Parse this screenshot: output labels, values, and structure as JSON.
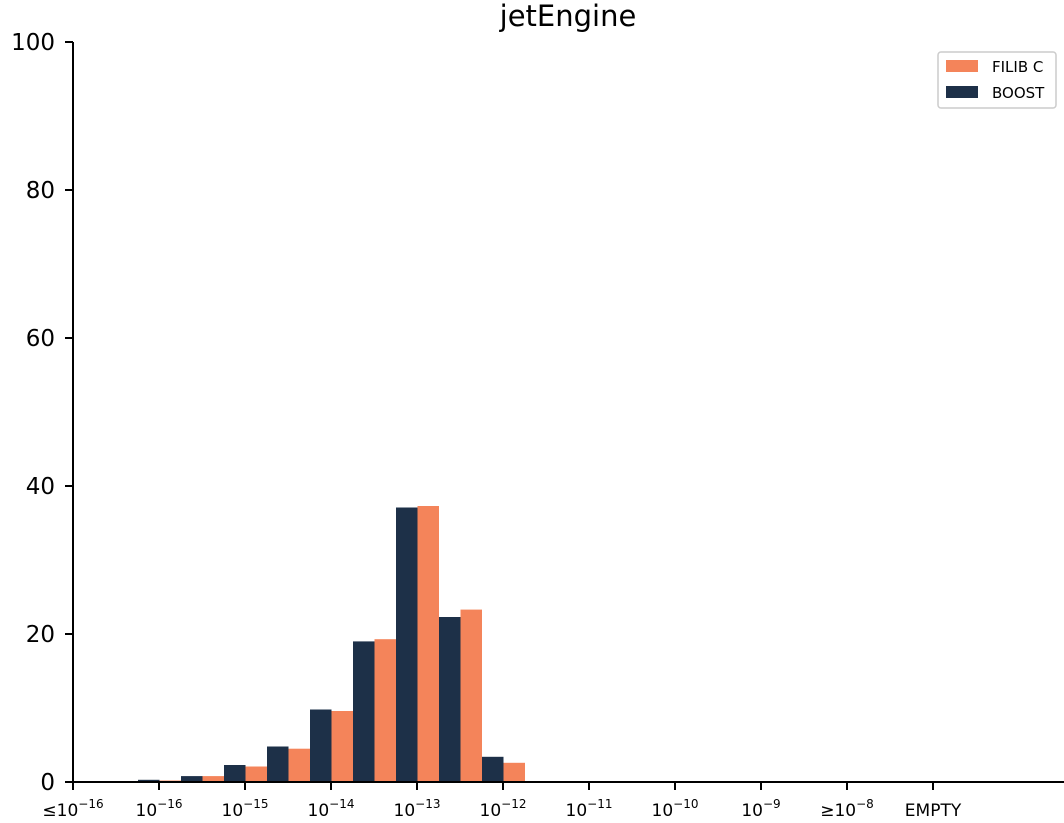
{
  "chart_data": {
    "type": "bar",
    "title": "jetEngine",
    "xlabel": "",
    "ylabel": "",
    "ylim": [
      0,
      100
    ],
    "yticks": [
      0,
      20,
      40,
      60,
      80,
      100
    ],
    "xtick_labels": [
      {
        "prefix": "≤",
        "base": "10",
        "exp": "−16"
      },
      {
        "prefix": "",
        "base": "10",
        "exp": "−16"
      },
      {
        "prefix": "",
        "base": "10",
        "exp": "−15"
      },
      {
        "prefix": "",
        "base": "10",
        "exp": "−14"
      },
      {
        "prefix": "",
        "base": "10",
        "exp": "−13"
      },
      {
        "prefix": "",
        "base": "10",
        "exp": "−12"
      },
      {
        "prefix": "",
        "base": "10",
        "exp": "−11"
      },
      {
        "prefix": "",
        "base": "10",
        "exp": "−10"
      },
      {
        "prefix": "",
        "base": "10",
        "exp": "−9"
      },
      {
        "prefix": "≥",
        "base": "10",
        "exp": "−8"
      },
      {
        "prefix": "",
        "base": "EMPTY",
        "exp": ""
      }
    ],
    "legend_position": "top-right",
    "grid": false,
    "series": [
      {
        "name": "FILIB C",
        "color": "#f4845a",
        "values": [
          0,
          0,
          0,
          0.2,
          0.8,
          2.1,
          4.5,
          9.6,
          19.3,
          37.3,
          23.3,
          2.6,
          0,
          0,
          0,
          0,
          0,
          0,
          0,
          0,
          0
        ]
      },
      {
        "name": "BOOST",
        "color": "#1d3048",
        "values": [
          0,
          0,
          0,
          0.3,
          0.8,
          2.3,
          4.8,
          9.8,
          19.0,
          37.1,
          22.3,
          3.4,
          0,
          0,
          0,
          0,
          0,
          0,
          0,
          0,
          0
        ]
      }
    ]
  }
}
